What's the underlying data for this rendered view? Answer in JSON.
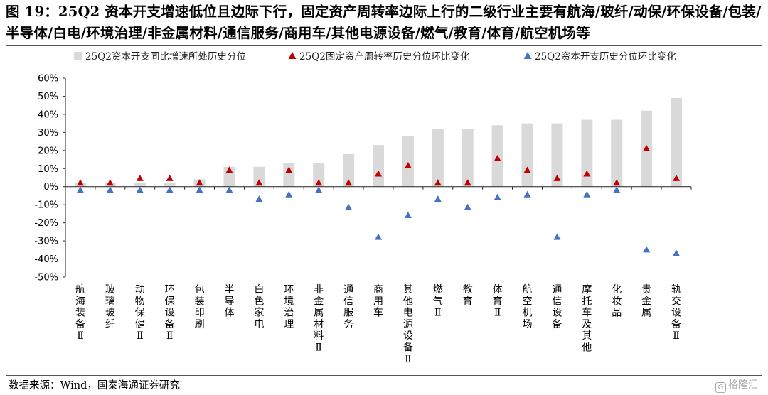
{
  "header": {
    "title": "图 19：25Q2 资本开支增速低位且边际下行，固定资产周转率边际上行的二级行业主要有航海/玻纤/动保/环保设备/包装/半导体/白电/环境治理/非金属材料/通信服务/商用车/其他电源设备/燃气/教育/体育/航空机场等"
  },
  "footer": {
    "source": "数据来源：Wind，国泰海通证券研究",
    "logo_icon": "gelonghui-logo-icon",
    "logo_text": "格隆汇"
  },
  "chart_data": {
    "type": "bar",
    "title": "",
    "xlabel": "",
    "ylabel": "",
    "ylim": [
      -50,
      60
    ],
    "yticks": [
      -50,
      -40,
      -30,
      -20,
      -10,
      0,
      10,
      20,
      30,
      40,
      50,
      60
    ],
    "ytick_labels": [
      "-50%",
      "-40%",
      "-30%",
      "-20%",
      "-10%",
      "0%",
      "10%",
      "20%",
      "30%",
      "40%",
      "50%",
      "60%"
    ],
    "grid": false,
    "legend": "top",
    "categories": [
      "航海装备Ⅱ",
      "玻璃玻纤",
      "动物保健Ⅱ",
      "环保设备Ⅱ",
      "包装印刷",
      "半导体",
      "白色家电",
      "环境治理",
      "非金属材料Ⅱ",
      "通信服务",
      "商用车",
      "其他电源设备Ⅱ",
      "燃气Ⅱ",
      "教育",
      "体育Ⅱ",
      "航空机场",
      "通信设备",
      "摩托车及其他",
      "化妆品",
      "贵金属",
      "轨交设备Ⅱ"
    ],
    "series": [
      {
        "name": "25Q2资本开支同比增速所处历史分位",
        "kind": "bar",
        "color": "#d9d9d9",
        "values": [
          2,
          2,
          2,
          2,
          4,
          11,
          11,
          13,
          13,
          18,
          23,
          28,
          32,
          32,
          34,
          35,
          35,
          37,
          37,
          42,
          49
        ]
      },
      {
        "name": "25Q2固定资产周转率历史分位环比变化",
        "kind": "marker",
        "color": "#c00000",
        "values": [
          2,
          2,
          4.5,
          4.5,
          2,
          9,
          2,
          9,
          2,
          2,
          7,
          11.5,
          2,
          2,
          15.5,
          9,
          4.5,
          7,
          2,
          21,
          4.5
        ]
      },
      {
        "name": "25Q2资本开支历史分位环比变化",
        "kind": "marker",
        "color": "#4472c4",
        "values": [
          -2,
          -2,
          -2,
          -2,
          -2,
          -2,
          -7,
          -4.5,
          -2,
          -11.5,
          -28,
          -16,
          -7,
          -11.5,
          -6,
          -4.5,
          -28,
          -4.5,
          -2,
          -35,
          -37
        ]
      }
    ]
  }
}
